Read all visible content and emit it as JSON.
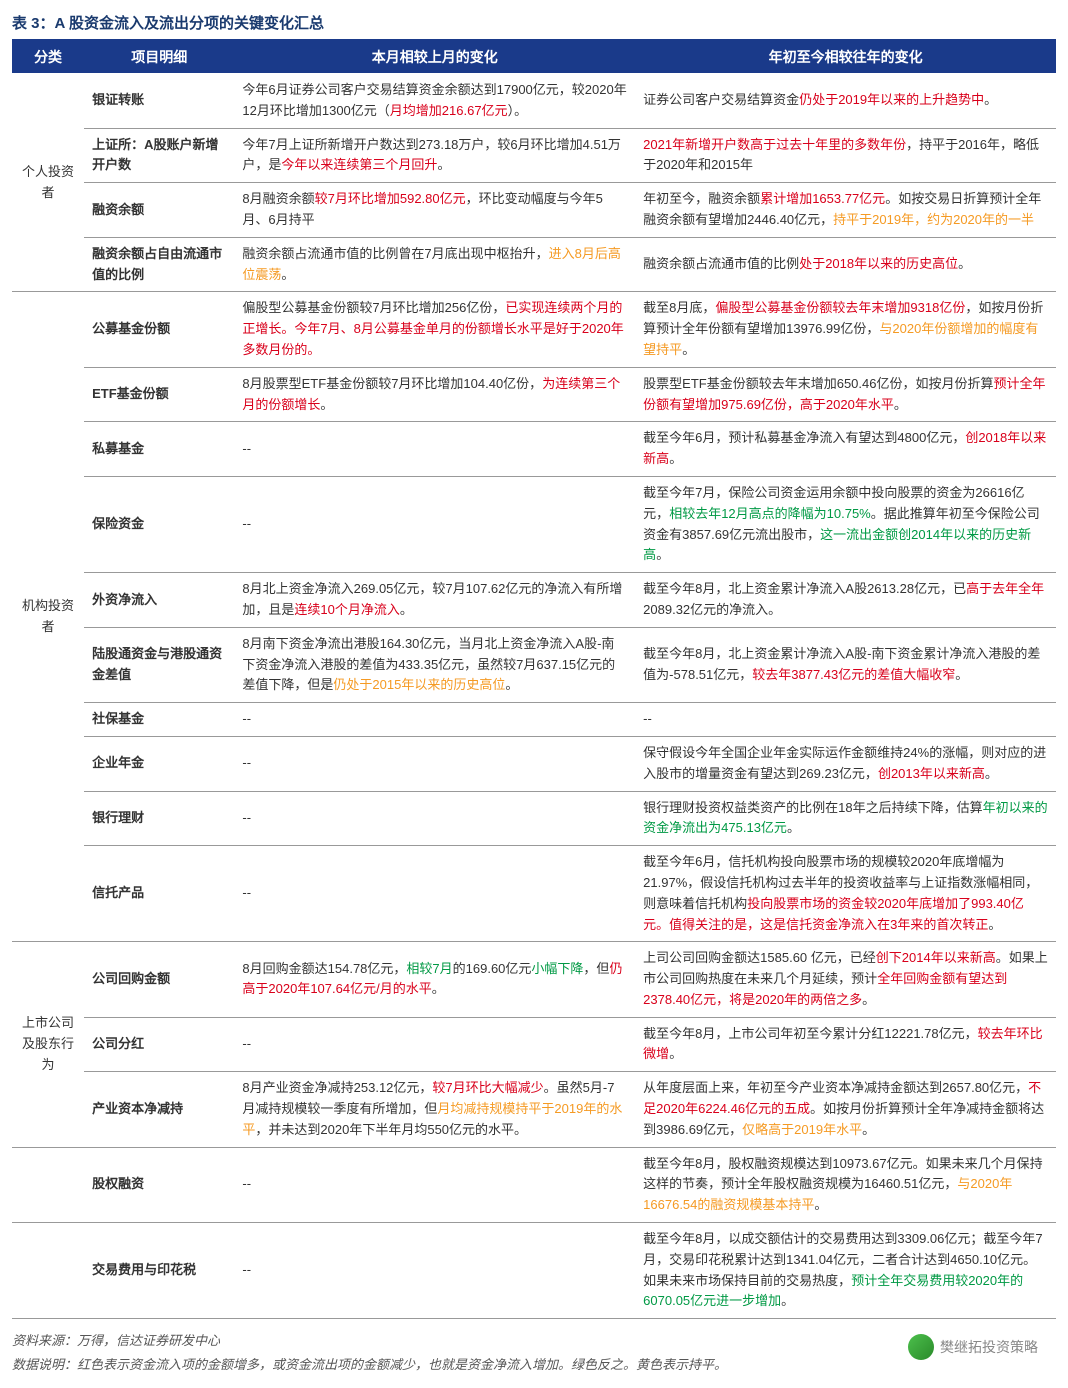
{
  "title": "表 3：A 股资金流入及流出分项的关键变化汇总",
  "headers": [
    "分类",
    "项目明细",
    "本月相较上月的变化",
    "年初至今相较往年的变化"
  ],
  "footer_source": "资料来源：万得，信达证券研发中心",
  "footer_note": "数据说明：红色表示资金流入项的金额增多，或资金流出项的金额减少，也就是资金净流入增加。绿色反之。黄色表示持平。",
  "watermark": "樊继拓投资策略",
  "colors": {
    "header_bg": "#1a3a8a",
    "title_color": "#1a3a6e",
    "red": "#d9001b",
    "green": "#009944",
    "orange": "#f59a23"
  },
  "groups": [
    {
      "cat": "个人投资者",
      "rows": [
        {
          "item": "银证转账",
          "month": [
            {
              "t": "今年6月证券公司客户交易结算资金余额达到17900亿元，较2020年12月环比增加1300亿元（"
            },
            {
              "t": "月均增加216.67亿元",
              "c": "r"
            },
            {
              "t": "）。"
            }
          ],
          "year": [
            {
              "t": "证券公司客户交易结算资金"
            },
            {
              "t": "仍处于2019年以来的上升趋势中",
              "c": "r"
            },
            {
              "t": "。"
            }
          ]
        },
        {
          "item": "上证所：A股账户新增开户数",
          "month": [
            {
              "t": "今年7月上证所新增开户数达到273.18万户，较6月环比增加4.51万户，是"
            },
            {
              "t": "今年以来连续第三个月回升",
              "c": "r"
            },
            {
              "t": "。"
            }
          ],
          "year": [
            {
              "t": "2021年新增开户数高于过去十年里的多数年份",
              "c": "r"
            },
            {
              "t": "，持平于2016年，略低于2020年和2015年"
            }
          ]
        },
        {
          "item": "融资余额",
          "month": [
            {
              "t": "8月融资余额"
            },
            {
              "t": "较7月环比增加592.80亿元",
              "c": "r"
            },
            {
              "t": "，环比变动幅度与今年5月、6月持平"
            }
          ],
          "year": [
            {
              "t": "年初至今，融资余额"
            },
            {
              "t": "累计增加1653.77亿元",
              "c": "r"
            },
            {
              "t": "。如按交易日折算预计全年融资余额有望增加2446.40亿元，"
            },
            {
              "t": "持平于2019年，约为2020年的一半",
              "c": "o"
            }
          ]
        },
        {
          "item": "融资余额占自由流通市值的比例",
          "month": [
            {
              "t": "融资余额占流通市值的比例曾在7月底出现中枢抬升，"
            },
            {
              "t": "进入8月后高位震荡",
              "c": "o"
            },
            {
              "t": "。"
            }
          ],
          "year": [
            {
              "t": "融资余额占流通市值的比例"
            },
            {
              "t": "处于2018年以来的历史高位",
              "c": "r"
            },
            {
              "t": "。"
            }
          ]
        }
      ]
    },
    {
      "cat": "机构投资者",
      "rows": [
        {
          "item": "公募基金份额",
          "month": [
            {
              "t": "偏股型公募基金份额较7月环比增加256亿份，"
            },
            {
              "t": "已实现连续两个月的正增长。今年7月、8月公募基金单月的份额增长水平是好于2020年多数月份的。",
              "c": "r"
            }
          ],
          "year": [
            {
              "t": "截至8月底，"
            },
            {
              "t": "偏股型公募基金份额较去年末增加9318亿份",
              "c": "r"
            },
            {
              "t": "，如按月份折算预计全年份额有望增加13976.99亿份，"
            },
            {
              "t": "与2020年份额增加的幅度有望持平",
              "c": "o"
            },
            {
              "t": "。"
            }
          ]
        },
        {
          "item": "ETF基金份额",
          "month": [
            {
              "t": "8月股票型ETF基金份额较7月环比增加104.40亿份，"
            },
            {
              "t": "为连续第三个月的份额增长",
              "c": "r"
            },
            {
              "t": "。"
            }
          ],
          "year": [
            {
              "t": "股票型ETF基金份额较去年末增加650.46亿份，如按月份折算"
            },
            {
              "t": "预计全年份额有望增加975.69亿份，高于2020年水平",
              "c": "r"
            },
            {
              "t": "。"
            }
          ]
        },
        {
          "item": "私募基金",
          "month": [
            {
              "t": "--"
            }
          ],
          "year": [
            {
              "t": "截至今年6月，预计私募基金净流入有望达到4800亿元，"
            },
            {
              "t": "创2018年以来新高",
              "c": "r"
            },
            {
              "t": "。"
            }
          ]
        },
        {
          "item": "保险资金",
          "month": [
            {
              "t": "--"
            }
          ],
          "year": [
            {
              "t": "截至今年7月，保险公司资金运用余额中投向股票的资金为26616亿元，"
            },
            {
              "t": "相较去年12月高点的降幅为10.75%",
              "c": "g"
            },
            {
              "t": "。据此推算年初至今保险公司资金有3857.69亿元流出股市，"
            },
            {
              "t": "这一流出金额创2014年以来的历史新高",
              "c": "g"
            },
            {
              "t": "。"
            }
          ]
        },
        {
          "item": "外资净流入",
          "month": [
            {
              "t": "8月北上资金净流入269.05亿元，较7月107.62亿元的净流入有所增加，且是"
            },
            {
              "t": "连续10个月净流入",
              "c": "r"
            },
            {
              "t": "。"
            }
          ],
          "year": [
            {
              "t": "截至今年8月，北上资金累计净流入A股2613.28亿元，已"
            },
            {
              "t": "高于去年全年",
              "c": "r"
            },
            {
              "t": "2089.32亿元的净流入。"
            }
          ]
        },
        {
          "item": "陆股通资金与港股通资金差值",
          "month": [
            {
              "t": "8月南下资金净流出港股164.30亿元，当月北上资金净流入A股-南下资金净流入港股的差值为433.35亿元，虽然较7月637.15亿元的差值下降，但是"
            },
            {
              "t": "仍处于2015年以来的历史高位",
              "c": "o"
            },
            {
              "t": "。"
            }
          ],
          "year": [
            {
              "t": "截至今年8月，北上资金累计净流入A股-南下资金累计净流入港股的差值为-578.51亿元，"
            },
            {
              "t": "较去年3877.43亿元的差值大幅收窄",
              "c": "r"
            },
            {
              "t": "。"
            }
          ]
        },
        {
          "item": "社保基金",
          "month": [
            {
              "t": "--"
            }
          ],
          "year": [
            {
              "t": "--"
            }
          ]
        },
        {
          "item": "企业年金",
          "month": [
            {
              "t": "--"
            }
          ],
          "year": [
            {
              "t": "保守假设今年全国企业年金实际运作金额维持24%的涨幅，则对应的进入股市的增量资金有望达到269.23亿元，"
            },
            {
              "t": "创2013年以来新高",
              "c": "r"
            },
            {
              "t": "。"
            }
          ]
        },
        {
          "item": "银行理财",
          "month": [
            {
              "t": "--"
            }
          ],
          "year": [
            {
              "t": "银行理财投资权益类资产的比例在18年之后持续下降，估算"
            },
            {
              "t": "年初以来的资金净流出为475.13亿元",
              "c": "g"
            },
            {
              "t": "。"
            }
          ]
        },
        {
          "item": "信托产品",
          "month": [
            {
              "t": "--"
            }
          ],
          "year": [
            {
              "t": "截至今年6月，信托机构投向股票市场的规模较2020年底增幅为21.97%，假设信托机构过去半年的投资收益率与上证指数涨幅相同，则意味着信托机构"
            },
            {
              "t": "投向股票市场的资金较2020年底增加了993.40亿元。值得关注的是，这是信托资金净流入在3年来的首次转正",
              "c": "r"
            },
            {
              "t": "。"
            }
          ]
        }
      ]
    },
    {
      "cat": "上市公司及股东行为",
      "rows": [
        {
          "item": "公司回购金额",
          "month": [
            {
              "t": "8月回购金额达154.78亿元，"
            },
            {
              "t": "相较7月",
              "c": "g"
            },
            {
              "t": "的169.60亿元"
            },
            {
              "t": "小幅下降",
              "c": "g"
            },
            {
              "t": "，但"
            },
            {
              "t": "仍高于2020年107.64亿元/月的水平",
              "c": "r"
            },
            {
              "t": "。"
            }
          ],
          "year": [
            {
              "t": "上司公司回购金额达1585.60 亿元，已经"
            },
            {
              "t": "创下2014年以来新高",
              "c": "r"
            },
            {
              "t": "。如果上市公司回购热度在未来几个月延续，预计"
            },
            {
              "t": "全年回购金额有望达到2378.40亿元，将是2020年的两倍之多",
              "c": "r"
            },
            {
              "t": "。"
            }
          ]
        },
        {
          "item": "公司分红",
          "month": [
            {
              "t": "--"
            }
          ],
          "year": [
            {
              "t": "截至今年8月，上市公司年初至今累计分红12221.78亿元，"
            },
            {
              "t": "较去年环比微增",
              "c": "r"
            },
            {
              "t": "。"
            }
          ]
        },
        {
          "item": "产业资本净减持",
          "month": [
            {
              "t": "8月产业资金净减持253.12亿元，"
            },
            {
              "t": "较7月环比大幅减少",
              "c": "r"
            },
            {
              "t": "。虽然5月-7月减持规模较一季度有所增加，但"
            },
            {
              "t": "月均减持规模持平于2019年的水平",
              "c": "o"
            },
            {
              "t": "，并未达到2020年下半年月均550亿元的水平。"
            }
          ],
          "year": [
            {
              "t": "从年度层面上来，年初至今产业资本净减持金额达到2657.80亿元，"
            },
            {
              "t": "不足2020年6224.46亿元的五成",
              "c": "r"
            },
            {
              "t": "。如按月份折算预计全年净减持金额将达到3986.69亿元，"
            },
            {
              "t": "仅略高于2019年水平",
              "c": "o"
            },
            {
              "t": "。"
            }
          ]
        }
      ]
    },
    {
      "cat": "",
      "rows": [
        {
          "item": "股权融资",
          "month": [
            {
              "t": "--"
            }
          ],
          "year": [
            {
              "t": "截至今年8月，股权融资规模达到10973.67亿元。如果未来几个月保持这样的节奏，预计全年股权融资规模为16460.51亿元，"
            },
            {
              "t": "与2020年16676.54的融资规模基本持平",
              "c": "o"
            },
            {
              "t": "。"
            }
          ]
        }
      ]
    },
    {
      "cat": "",
      "rows": [
        {
          "item": "交易费用与印花税",
          "month": [
            {
              "t": "--"
            }
          ],
          "year": [
            {
              "t": "截至今年8月，以成交额估计的交易费用达到3309.06亿元；截至今年7月，交易印花税累计达到1341.04亿元，二者合计达到4650.10亿元。如果未来市场保持目前的交易热度，"
            },
            {
              "t": "预计全年交易费用较2020年的6070.05亿元进一步增加",
              "c": "g"
            },
            {
              "t": "。"
            }
          ]
        }
      ]
    }
  ]
}
